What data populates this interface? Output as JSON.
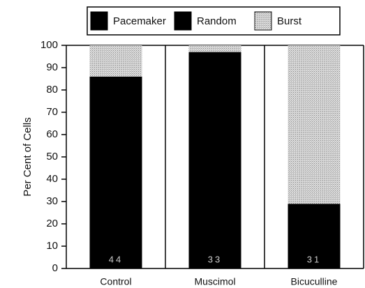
{
  "chart_data": {
    "type": "stacked_bar",
    "y_label": "Per Cent of Cells",
    "categories": [
      "Control",
      "Muscimol",
      "Bicuculline"
    ],
    "series": [
      {
        "name": "Pacemaker",
        "color": "#000000",
        "values": [
          86,
          97,
          29
        ]
      },
      {
        "name": "Random",
        "color": "#000000",
        "values": [
          0,
          0,
          0
        ]
      },
      {
        "name": "Burst",
        "color": "#d9d9d9",
        "values": [
          14,
          3,
          71
        ]
      }
    ],
    "bar_labels": [
      "44",
      "33",
      "31"
    ],
    "ylim": [
      0,
      100
    ],
    "yticks": [
      0,
      10,
      20,
      30,
      40,
      50,
      60,
      70,
      80,
      90,
      100
    ]
  }
}
